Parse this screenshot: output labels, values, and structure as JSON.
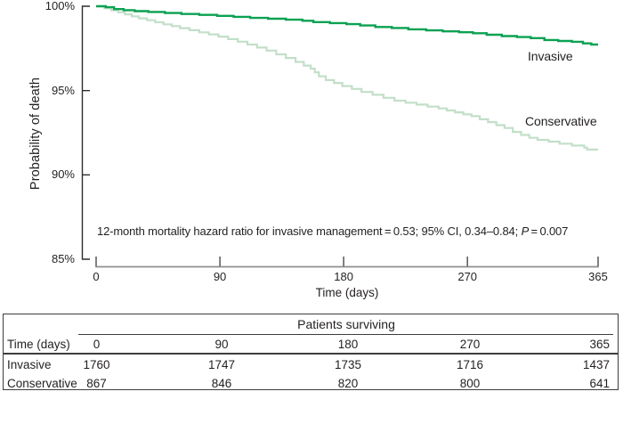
{
  "chart_data": {
    "type": "line",
    "subtype": "kaplan-meier-step",
    "title": "",
    "ylabel": "Probability of death",
    "xlabel": "Time (days)",
    "xlim": [
      0,
      365
    ],
    "ylim": [
      85,
      100
    ],
    "grid": false,
    "x_ticks": [
      0,
      90,
      180,
      270,
      365
    ],
    "x_tick_labels": [
      "0",
      "90",
      "180",
      "270",
      "365"
    ],
    "y_ticks": [
      100,
      95,
      90,
      85
    ],
    "y_tick_labels": [
      "100%",
      "95%",
      "90%",
      "85%"
    ],
    "legend_position": "inline-right-of-curves",
    "series": [
      {
        "name": "Invasive",
        "color": "#0ba152",
        "points": [
          [
            0,
            100
          ],
          [
            7,
            99.94
          ],
          [
            13,
            99.83
          ],
          [
            20,
            99.77
          ],
          [
            28,
            99.71
          ],
          [
            38,
            99.66
          ],
          [
            50,
            99.6
          ],
          [
            62,
            99.54
          ],
          [
            75,
            99.49
          ],
          [
            88,
            99.43
          ],
          [
            100,
            99.37
          ],
          [
            112,
            99.31
          ],
          [
            125,
            99.26
          ],
          [
            138,
            99.2
          ],
          [
            150,
            99.14
          ],
          [
            158,
            99.06
          ],
          [
            170,
            99.0
          ],
          [
            182,
            98.94
          ],
          [
            192,
            98.86
          ],
          [
            203,
            98.77
          ],
          [
            215,
            98.71
          ],
          [
            227,
            98.63
          ],
          [
            240,
            98.57
          ],
          [
            252,
            98.51
          ],
          [
            264,
            98.46
          ],
          [
            274,
            98.4
          ],
          [
            284,
            98.31
          ],
          [
            295,
            98.23
          ],
          [
            306,
            98.17
          ],
          [
            316,
            98.11
          ],
          [
            326,
            98.0
          ],
          [
            336,
            97.94
          ],
          [
            346,
            97.89
          ],
          [
            354,
            97.8
          ],
          [
            360,
            97.73
          ]
        ]
      },
      {
        "name": "Conservative",
        "color": "#c2dfc8",
        "points": [
          [
            0,
            100
          ],
          [
            6,
            99.88
          ],
          [
            11,
            99.76
          ],
          [
            16,
            99.64
          ],
          [
            21,
            99.52
          ],
          [
            26,
            99.4
          ],
          [
            31,
            99.28
          ],
          [
            37,
            99.17
          ],
          [
            43,
            99.05
          ],
          [
            49,
            98.93
          ],
          [
            55,
            98.82
          ],
          [
            61,
            98.7
          ],
          [
            68,
            98.58
          ],
          [
            75,
            98.45
          ],
          [
            82,
            98.33
          ],
          [
            89,
            98.2
          ],
          [
            96,
            98.05
          ],
          [
            103,
            97.9
          ],
          [
            110,
            97.73
          ],
          [
            117,
            97.55
          ],
          [
            124,
            97.37
          ],
          [
            131,
            97.15
          ],
          [
            138,
            96.93
          ],
          [
            145,
            96.7
          ],
          [
            151,
            96.48
          ],
          [
            156,
            96.3
          ],
          [
            159,
            96.08
          ],
          [
            162,
            95.85
          ],
          [
            167,
            95.62
          ],
          [
            173,
            95.45
          ],
          [
            179,
            95.27
          ],
          [
            186,
            95.1
          ],
          [
            193,
            94.92
          ],
          [
            201,
            94.75
          ],
          [
            209,
            94.57
          ],
          [
            217,
            94.4
          ],
          [
            225,
            94.28
          ],
          [
            233,
            94.17
          ],
          [
            241,
            94.05
          ],
          [
            249,
            93.94
          ],
          [
            255,
            93.82
          ],
          [
            261,
            93.71
          ],
          [
            267,
            93.59
          ],
          [
            273,
            93.48
          ],
          [
            279,
            93.3
          ],
          [
            285,
            93.13
          ],
          [
            291,
            92.95
          ],
          [
            297,
            92.78
          ],
          [
            303,
            92.55
          ],
          [
            309,
            92.37
          ],
          [
            315,
            92.2
          ],
          [
            321,
            92.08
          ],
          [
            329,
            91.97
          ],
          [
            337,
            91.85
          ],
          [
            346,
            91.74
          ],
          [
            355,
            91.62
          ],
          [
            357,
            91.5
          ]
        ]
      }
    ]
  },
  "annotation": {
    "part1": "12-month mortality hazard ratio for invasive management = 0.53; 95% CI, 0.34–0.84; ",
    "p_symbol": "P",
    "part2": " = 0.007"
  },
  "table": {
    "title": "Patients surviving",
    "row_header": "Time (days)",
    "columns": [
      "0",
      "90",
      "180",
      "270",
      "365"
    ],
    "rows": [
      {
        "label": "Invasive",
        "values": [
          "1760",
          "1747",
          "1735",
          "1716",
          "1437"
        ]
      },
      {
        "label": "Conservative",
        "values": [
          "867",
          "846",
          "820",
          "800",
          "641"
        ]
      }
    ]
  },
  "colors": {
    "invasive": "#0ba152",
    "conservative": "#c2dfc8",
    "y_axis": "#2d2d2d",
    "x_axis_line": "#8f8f8f",
    "x_axis_tick": "#4b4b4b",
    "text": "#231f20",
    "table_border": "#3d3d3d"
  }
}
